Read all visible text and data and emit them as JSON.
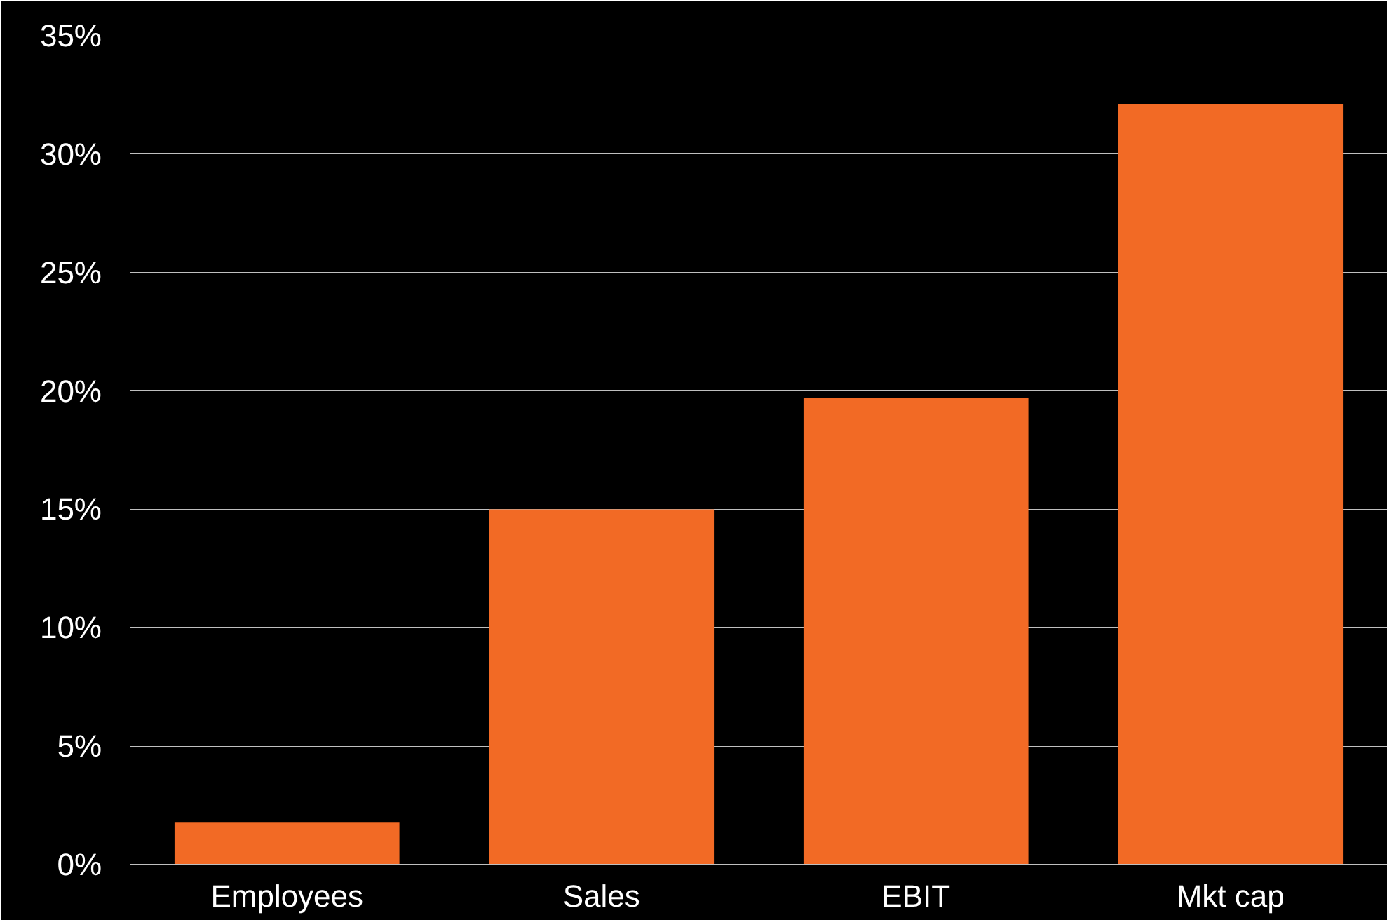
{
  "chart_data": {
    "type": "bar",
    "categories": [
      "Employees",
      "Sales",
      "EBIT",
      "Mkt cap"
    ],
    "values": [
      1.8,
      15.0,
      19.7,
      32.1
    ],
    "color": "#f26a25",
    "ylim": [
      0,
      35
    ],
    "yticks": [
      {
        "value": 0,
        "label": "0%"
      },
      {
        "value": 5,
        "label": "5%"
      },
      {
        "value": 10,
        "label": "10%"
      },
      {
        "value": 15,
        "label": "15%"
      },
      {
        "value": 20,
        "label": "20%"
      },
      {
        "value": 25,
        "label": "25%"
      },
      {
        "value": 30,
        "label": "30%"
      },
      {
        "value": 35,
        "label": "35%"
      }
    ],
    "grid": "y"
  }
}
